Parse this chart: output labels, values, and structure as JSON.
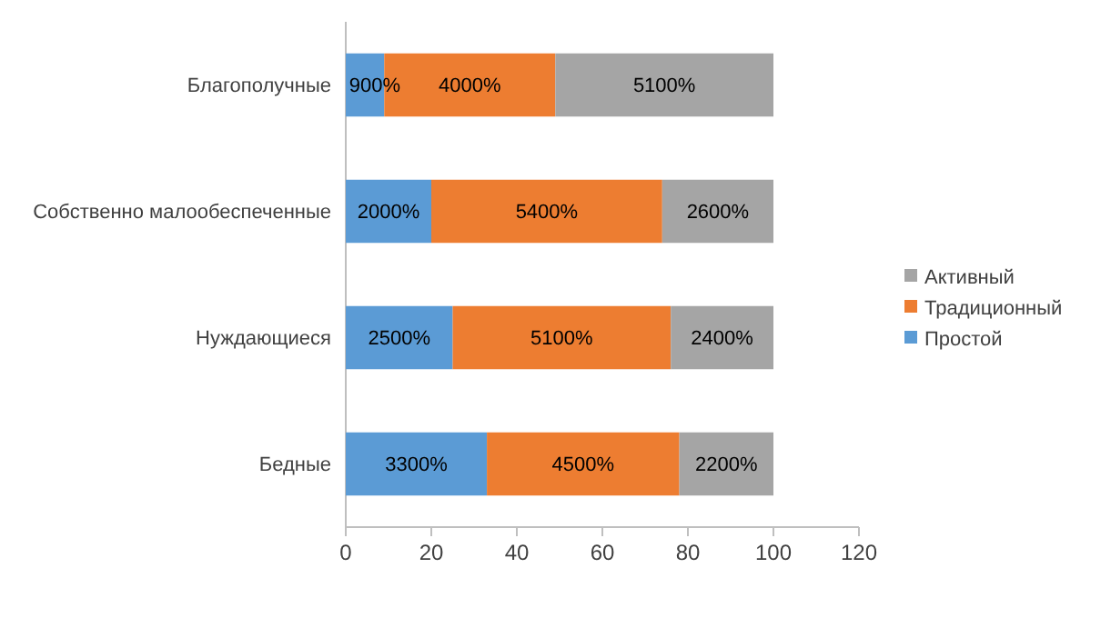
{
  "chart_data": {
    "type": "bar",
    "orientation": "horizontal",
    "stacked": true,
    "categories": [
      "Благополучные",
      "Собственно малообеспеченные",
      "Нуждающиеся",
      "Бедные"
    ],
    "series": [
      {
        "name": "Простой",
        "color": "#5b9bd5",
        "values": [
          9,
          20,
          25,
          33
        ],
        "value_labels": [
          "900%",
          "2000%",
          "2500%",
          "3300%"
        ]
      },
      {
        "name": "Традиционный",
        "color": "#ed7d31",
        "values": [
          40,
          54,
          51,
          45
        ],
        "value_labels": [
          "4000%",
          "5400%",
          "5100%",
          "4500%"
        ]
      },
      {
        "name": "Активный",
        "color": "#a5a5a5",
        "values": [
          51,
          26,
          24,
          22
        ],
        "value_labels": [
          "5100%",
          "2600%",
          "2400%",
          "2200%"
        ]
      }
    ],
    "xlim": [
      0,
      120
    ],
    "xticks": [
      0,
      20,
      40,
      60,
      80,
      100,
      120
    ],
    "grid": false,
    "legend": "right"
  }
}
